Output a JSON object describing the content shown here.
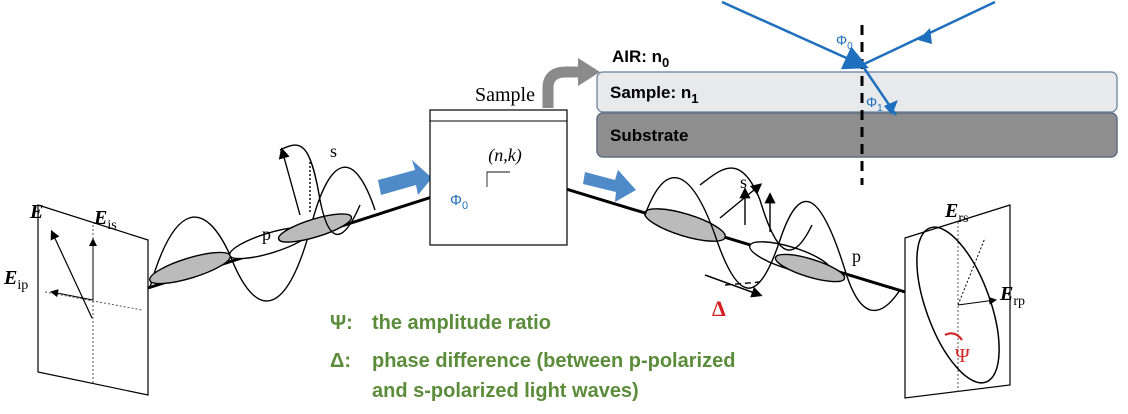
{
  "incident": {
    "E": "E",
    "Eis": {
      "main": "E",
      "sub": "is"
    },
    "Eip": {
      "main": "E",
      "sub": "ip"
    },
    "p": "p",
    "s": "s"
  },
  "sample": {
    "label": "Sample",
    "nk": "(n,k)",
    "angle": {
      "main": "Φ",
      "sub": "0"
    }
  },
  "inset": {
    "air": {
      "main": "AIR: n",
      "sub": "0"
    },
    "sample": {
      "main": "Sample: n",
      "sub": "1"
    },
    "substrate": "Substrate",
    "phi0": {
      "main": "Φ",
      "sub": "0"
    },
    "phi1": {
      "main": "Φ",
      "sub": "1"
    }
  },
  "reflected": {
    "s": "s",
    "p": "p",
    "delta": "Δ",
    "Ers": {
      "main": "E",
      "sub": "rs"
    },
    "Erp": {
      "main": "E",
      "sub": "rp"
    },
    "psi": "Ψ"
  },
  "legend": {
    "psi": {
      "symbol": "Ψ:",
      "text": "the amplitude ratio"
    },
    "delta": {
      "symbol": "Δ:",
      "lines": [
        "phase difference (between p-polarized",
        "and s-polarized light waves)"
      ]
    }
  }
}
